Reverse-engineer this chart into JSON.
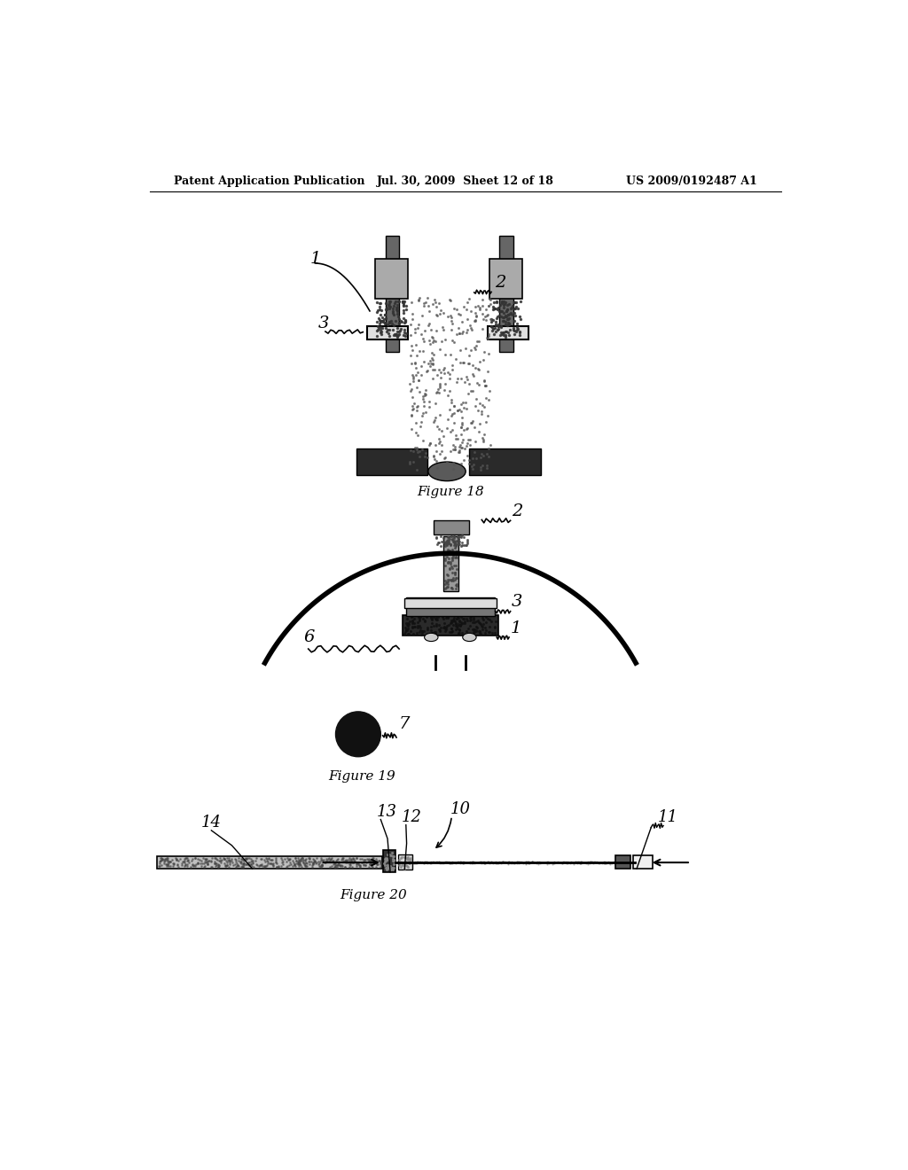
{
  "bg_color": "#ffffff",
  "header_left": "Patent Application Publication",
  "header_mid": "Jul. 30, 2009  Sheet 12 of 18",
  "header_right": "US 2009/0192487 A1",
  "fig18_caption": "Figure 18",
  "fig19_caption": "Figure 19",
  "fig20_caption": "Figure 20"
}
